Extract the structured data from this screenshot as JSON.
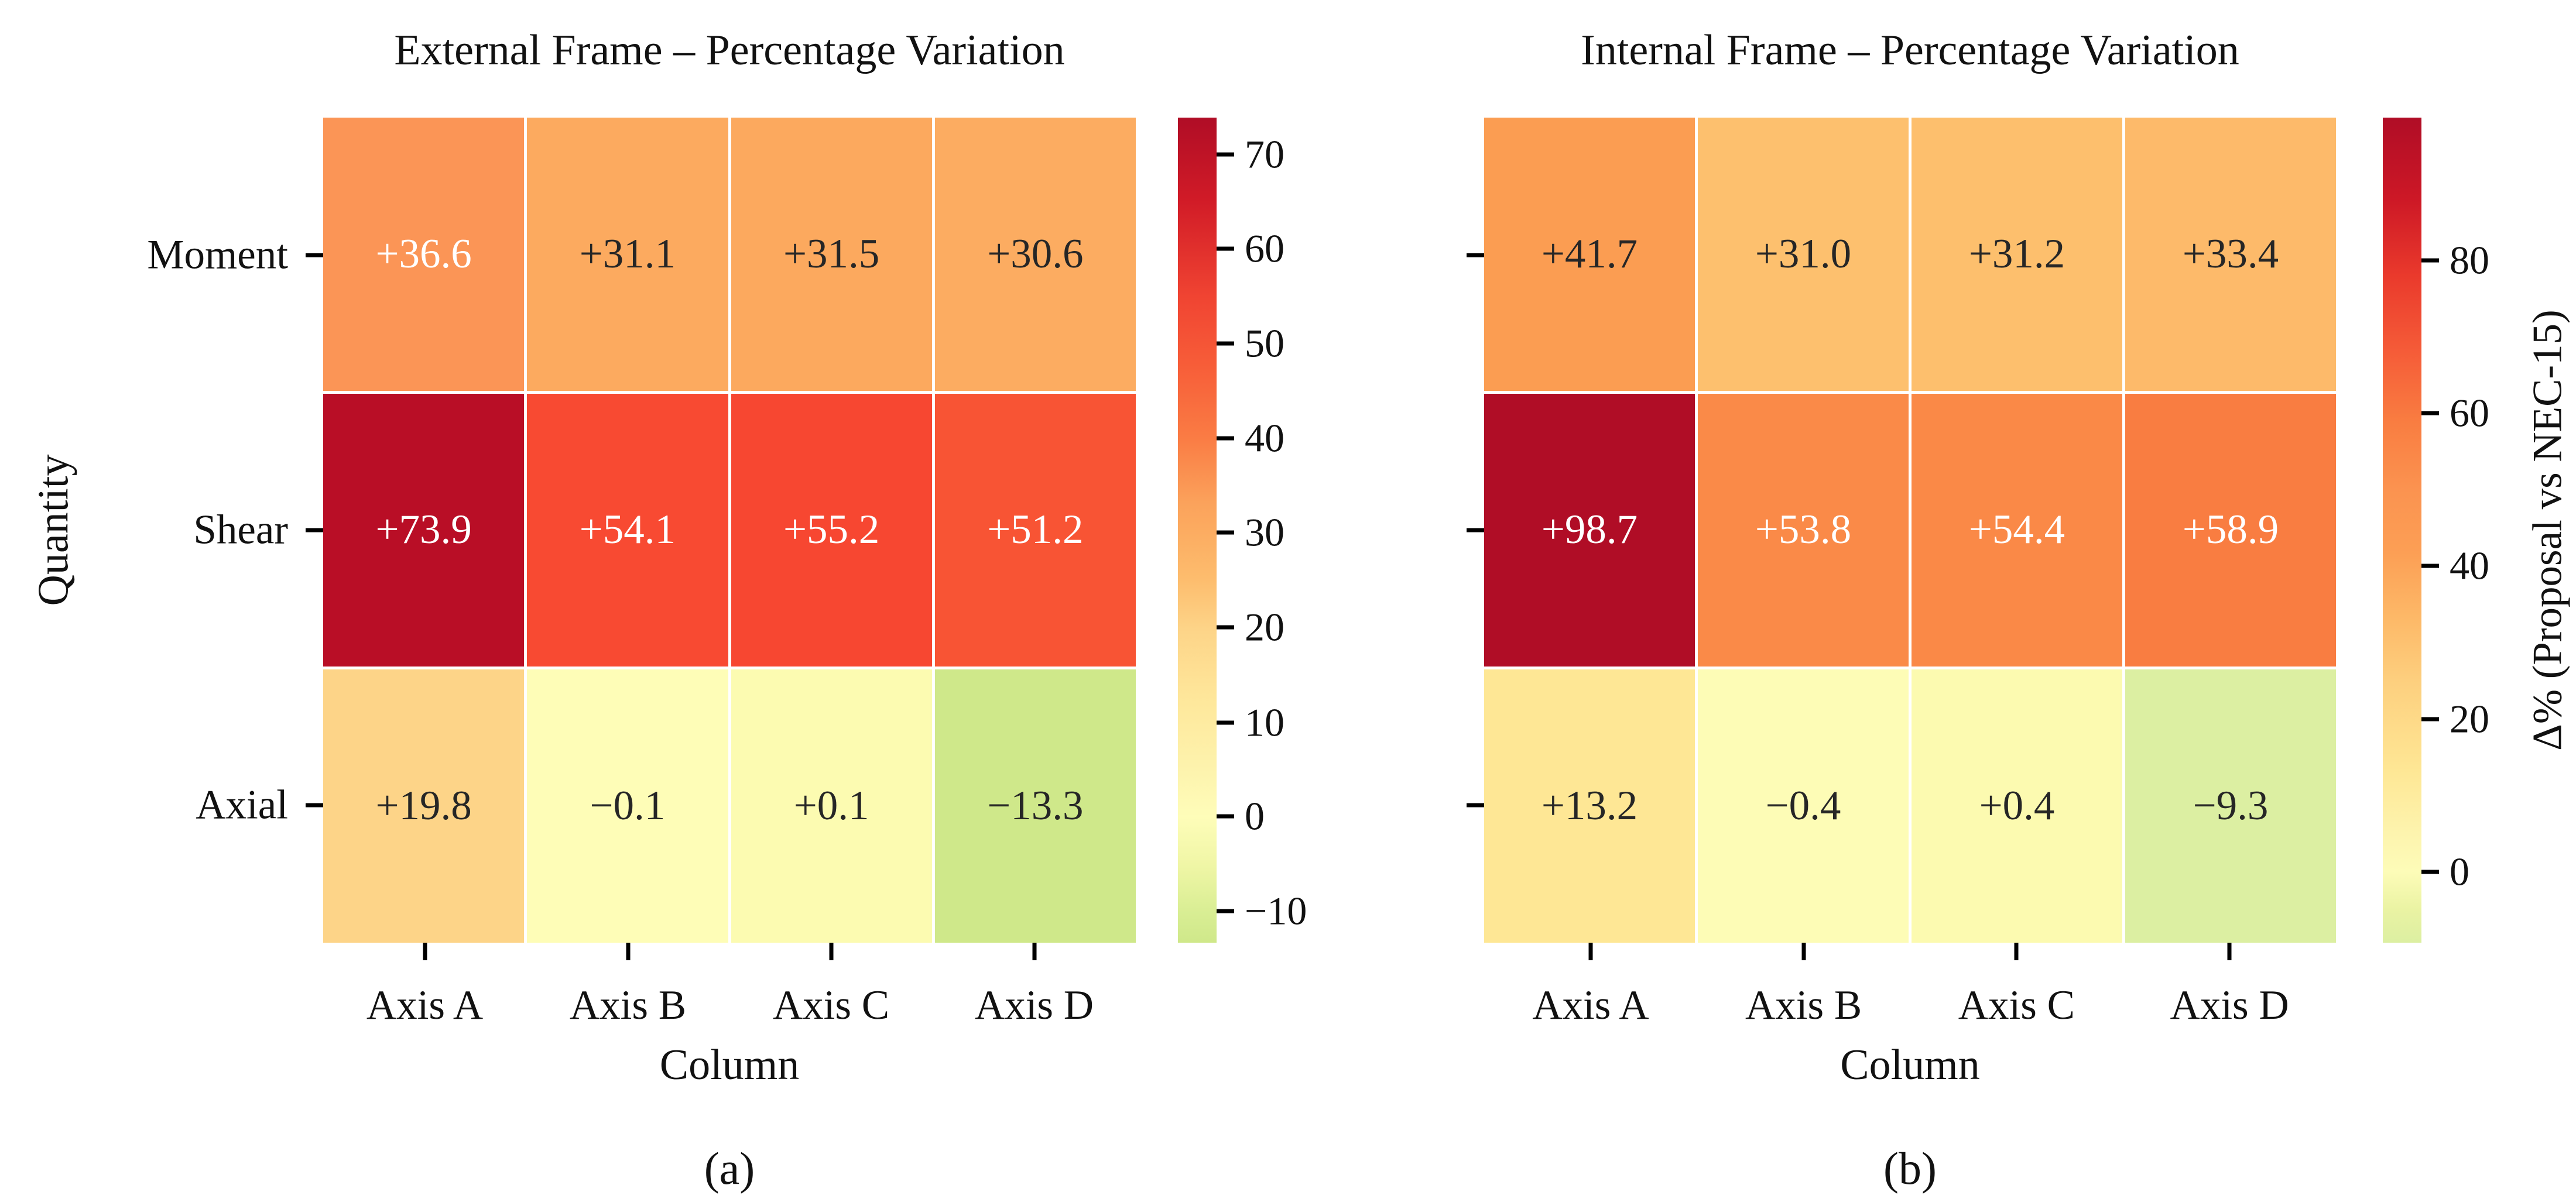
{
  "figure": {
    "background": "#ffffff",
    "text_color": "#111111",
    "annot_dark_color": "#262626",
    "annot_light_color": "#ffffff",
    "tick_color": "#000000"
  },
  "panels": [
    {
      "title": "External Frame – Percentage Variation",
      "caption": "(a)",
      "xlabel": "Column",
      "ylabel": "Quantity",
      "row_labels": [
        "Moment",
        "Shear",
        "Axial"
      ],
      "col_labels": [
        "Axis A",
        "Axis B",
        "Axis C",
        "Axis D"
      ],
      "cells": [
        [
          {
            "text": "+36.6",
            "bg": "#fb9556",
            "fg": "#ffffff"
          },
          {
            "text": "+31.1",
            "bg": "#fcaa5f",
            "fg": "#262626"
          },
          {
            "text": "+31.5",
            "bg": "#fca95e",
            "fg": "#262626"
          },
          {
            "text": "+30.6",
            "bg": "#fcac61",
            "fg": "#262626"
          }
        ],
        [
          {
            "text": "+73.9",
            "bg": "#b90e26",
            "fg": "#ffffff"
          },
          {
            "text": "+54.1",
            "bg": "#f84a32",
            "fg": "#ffffff"
          },
          {
            "text": "+55.2",
            "bg": "#f74731",
            "fg": "#ffffff"
          },
          {
            "text": "+51.2",
            "bg": "#f85434",
            "fg": "#ffffff"
          }
        ],
        [
          {
            "text": "+19.8",
            "bg": "#fdd488",
            "fg": "#262626"
          },
          {
            "text": "−0.1",
            "bg": "#fefdb7",
            "fg": "#262626"
          },
          {
            "text": "+0.1",
            "bg": "#fcfbb1",
            "fg": "#262626"
          },
          {
            "text": "−13.3",
            "bg": "#cfe88a",
            "fg": "#262626"
          }
        ]
      ],
      "colorbar": {
        "label": "",
        "ticks": [
          {
            "label": "70",
            "pos": 4.5
          },
          {
            "label": "60",
            "pos": 15.9
          },
          {
            "label": "50",
            "pos": 27.4
          },
          {
            "label": "40",
            "pos": 38.9
          },
          {
            "label": "30",
            "pos": 50.3
          },
          {
            "label": "20",
            "pos": 61.8
          },
          {
            "label": "10",
            "pos": 73.3
          },
          {
            "label": "0",
            "pos": 84.7
          },
          {
            "label": "−10",
            "pos": 96.2
          }
        ],
        "gradient": [
          [
            "#b00d26",
            0
          ],
          [
            "#d11b27",
            10
          ],
          [
            "#f04432",
            21.7
          ],
          [
            "#f75c38",
            29.7
          ],
          [
            "#fa7c44",
            38.9
          ],
          [
            "#fba35c",
            46.9
          ],
          [
            "#fca95f",
            49.2
          ],
          [
            "#fdbd6e",
            56.1
          ],
          [
            "#fdd488",
            62
          ],
          [
            "#fee89c",
            71
          ],
          [
            "#fdf3ad",
            79
          ],
          [
            "#fefdb9",
            84.7
          ],
          [
            "#f0f6a6",
            90.5
          ],
          [
            "#d9ee94",
            96.2
          ],
          [
            "#cfe88a",
            100
          ]
        ]
      }
    },
    {
      "title": "Internal Frame – Percentage Variation",
      "caption": "(b)",
      "xlabel": "Column",
      "ylabel": "",
      "row_labels": [],
      "col_labels": [
        "Axis A",
        "Axis B",
        "Axis C",
        "Axis D"
      ],
      "cells": [
        [
          {
            "text": "+41.7",
            "bg": "#fb9d52",
            "fg": "#262626"
          },
          {
            "text": "+31.0",
            "bg": "#fdc06e",
            "fg": "#262626"
          },
          {
            "text": "+31.2",
            "bg": "#fdbf6d",
            "fg": "#262626"
          },
          {
            "text": "+33.4",
            "bg": "#fdba6a",
            "fg": "#262626"
          }
        ],
        [
          {
            "text": "+98.7",
            "bg": "#b00d26",
            "fg": "#ffffff"
          },
          {
            "text": "+53.8",
            "bg": "#fa8a48",
            "fg": "#ffffff"
          },
          {
            "text": "+54.4",
            "bg": "#fa8947",
            "fg": "#ffffff"
          },
          {
            "text": "+58.9",
            "bg": "#f97d41",
            "fg": "#ffffff"
          }
        ],
        [
          {
            "text": "+13.2",
            "bg": "#fee795",
            "fg": "#262626"
          },
          {
            "text": "−0.4",
            "bg": "#fdfcb6",
            "fg": "#262626"
          },
          {
            "text": "+0.4",
            "bg": "#fcfab0",
            "fg": "#262626"
          },
          {
            "text": "−9.3",
            "bg": "#dcefa2",
            "fg": "#262626"
          }
        ]
      ],
      "colorbar": {
        "label": "Δ% (Proposal vs NEC-15)",
        "ticks": [
          {
            "label": "80",
            "pos": 17.3
          },
          {
            "label": "60",
            "pos": 35.8
          },
          {
            "label": "40",
            "pos": 54.3
          },
          {
            "label": "20",
            "pos": 72.9
          },
          {
            "label": "0",
            "pos": 91.4
          }
        ],
        "gradient": [
          [
            "#b00d26",
            0
          ],
          [
            "#cd1826",
            9.9
          ],
          [
            "#ea3a2c",
            19.2
          ],
          [
            "#f55c38",
            28.4
          ],
          [
            "#f97d41",
            36.9
          ],
          [
            "#fb9350",
            45.1
          ],
          [
            "#fc9f55",
            52.8
          ],
          [
            "#fdb968",
            60.8
          ],
          [
            "#fdcf7e",
            68.2
          ],
          [
            "#fee795",
            79.2
          ],
          [
            "#fdf4ae",
            86.8
          ],
          [
            "#fdfcb8",
            91.4
          ],
          [
            "#eaf3a3",
            96
          ],
          [
            "#dcefa2",
            100
          ]
        ]
      }
    }
  ],
  "chart_data": [
    {
      "type": "heatmap",
      "title": "External Frame – Percentage Variation",
      "xlabel": "Column",
      "ylabel": "Quantity",
      "rows": [
        "Moment",
        "Shear",
        "Axial"
      ],
      "columns": [
        "Axis A",
        "Axis B",
        "Axis C",
        "Axis D"
      ],
      "values": [
        [
          36.6,
          31.1,
          31.5,
          30.6
        ],
        [
          73.9,
          54.1,
          55.2,
          51.2
        ],
        [
          19.8,
          -0.1,
          0.1,
          -13.3
        ]
      ],
      "value_format": "signed, one decimal",
      "colorbar_ticks": [
        70,
        60,
        50,
        40,
        30,
        20,
        10,
        0,
        -10
      ],
      "colormap": "red-yellow-green reversed (high=dark red, low=light green)",
      "caption": "(a)",
      "legend_position": "right colorbar"
    },
    {
      "type": "heatmap",
      "title": "Internal Frame – Percentage Variation",
      "xlabel": "Column",
      "ylabel": "",
      "rows": [
        "Moment",
        "Shear",
        "Axial"
      ],
      "columns": [
        "Axis A",
        "Axis B",
        "Axis C",
        "Axis D"
      ],
      "values": [
        [
          41.7,
          31.0,
          31.2,
          33.4
        ],
        [
          98.7,
          53.8,
          54.4,
          58.9
        ],
        [
          13.2,
          -0.4,
          0.4,
          -9.3
        ]
      ],
      "value_format": "signed, one decimal",
      "colorbar_ticks": [
        80,
        60,
        40,
        20,
        0
      ],
      "colorbar_label": "Δ% (Proposal vs NEC-15)",
      "colormap": "red-yellow-green reversed (high=dark red, low=light green)",
      "caption": "(b)",
      "legend_position": "right colorbar"
    }
  ]
}
